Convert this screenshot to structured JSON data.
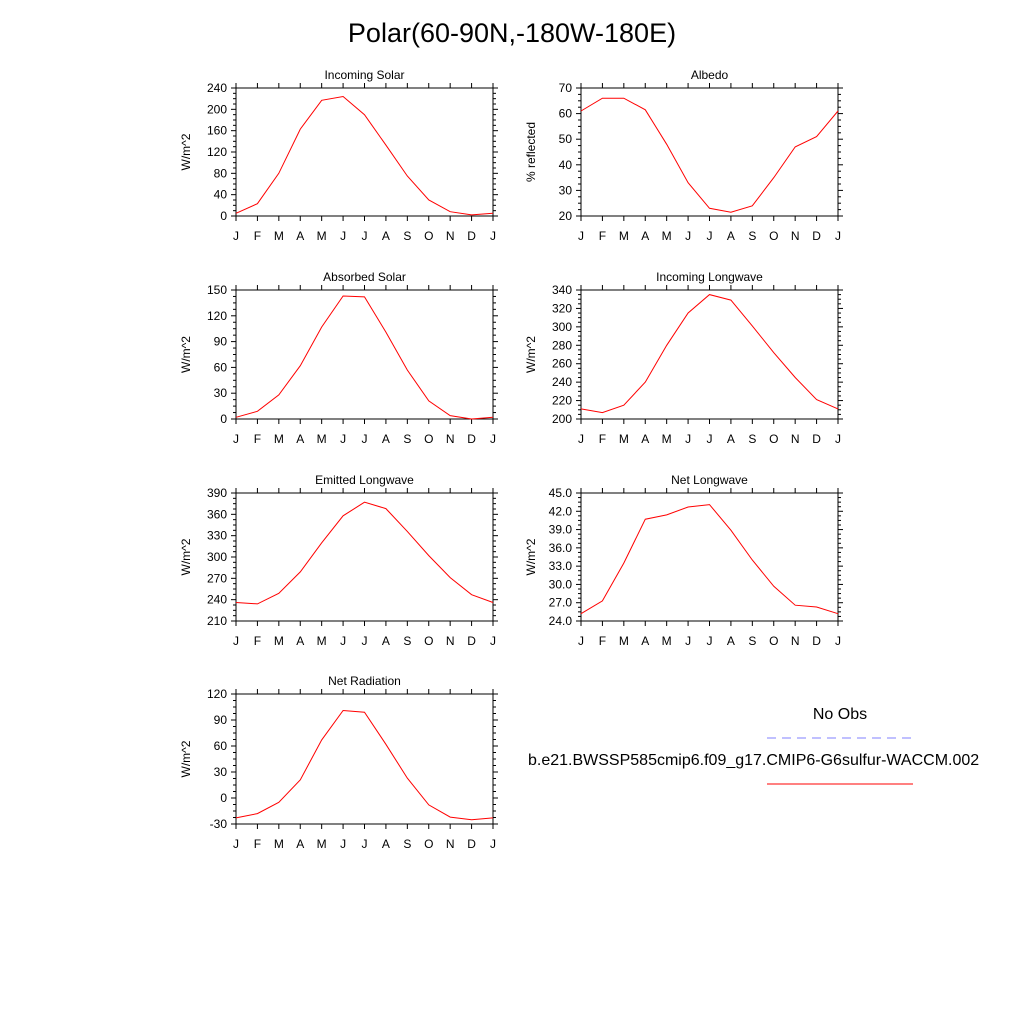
{
  "title": "Polar(60-90N,-180W-180E)",
  "legend": {
    "obs_label": "No Obs",
    "case_label": "b.e21.BWSSP585cmip6.f09_g17.CMIP6-G6sulfur-WACCM.002",
    "obs_color": "#8080ff",
    "case_color": "#ff0000"
  },
  "chart_data": [
    {
      "type": "line",
      "title": "Incoming Solar",
      "ylabel": "W/m^2",
      "x": [
        "J",
        "F",
        "M",
        "A",
        "M",
        "J",
        "J",
        "A",
        "S",
        "O",
        "N",
        "D",
        "J"
      ],
      "yticks": [
        "0",
        "40",
        "80",
        "120",
        "160",
        "200",
        "240"
      ],
      "ylim": [
        0,
        240
      ],
      "series": [
        {
          "values": [
            5,
            23,
            80,
            163,
            217,
            224,
            190,
            133,
            75,
            30,
            8,
            2,
            5
          ]
        }
      ]
    },
    {
      "type": "line",
      "title": "Albedo",
      "ylabel": "% reflected",
      "x": [
        "J",
        "F",
        "M",
        "A",
        "M",
        "J",
        "J",
        "A",
        "S",
        "O",
        "N",
        "D",
        "J"
      ],
      "yticks": [
        "20",
        "30",
        "40",
        "50",
        "60",
        "70"
      ],
      "ylim": [
        20,
        70
      ],
      "series": [
        {
          "values": [
            61,
            66,
            66,
            61.5,
            48,
            33,
            23,
            21.5,
            24,
            35,
            47,
            51,
            61
          ]
        }
      ]
    },
    {
      "type": "line",
      "title": "Absorbed Solar",
      "ylabel": "W/m^2",
      "x": [
        "J",
        "F",
        "M",
        "A",
        "M",
        "J",
        "J",
        "A",
        "S",
        "O",
        "N",
        "D",
        "J"
      ],
      "yticks": [
        "0",
        "30",
        "60",
        "90",
        "120",
        "150"
      ],
      "ylim": [
        0,
        150
      ],
      "series": [
        {
          "values": [
            2,
            9,
            28,
            62,
            107,
            143,
            142,
            101,
            57,
            21,
            4,
            0,
            2
          ]
        }
      ]
    },
    {
      "type": "line",
      "title": "Incoming Longwave",
      "ylabel": "W/m^2",
      "x": [
        "J",
        "F",
        "M",
        "A",
        "M",
        "J",
        "J",
        "A",
        "S",
        "O",
        "N",
        "D",
        "J"
      ],
      "yticks": [
        "200",
        "220",
        "240",
        "260",
        "280",
        "300",
        "320",
        "340"
      ],
      "ylim": [
        200,
        340
      ],
      "series": [
        {
          "values": [
            211,
            207,
            215,
            240,
            280,
            315,
            335,
            329,
            301,
            272,
            245,
            221,
            211
          ]
        }
      ]
    },
    {
      "type": "line",
      "title": "Emitted Longwave",
      "ylabel": "W/m^2",
      "x": [
        "J",
        "F",
        "M",
        "A",
        "M",
        "J",
        "J",
        "A",
        "S",
        "O",
        "N",
        "D",
        "J"
      ],
      "yticks": [
        "210",
        "240",
        "270",
        "300",
        "330",
        "360",
        "390"
      ],
      "ylim": [
        210,
        390
      ],
      "series": [
        {
          "values": [
            236,
            234,
            249,
            279,
            320,
            358,
            377,
            368,
            336,
            302,
            271,
            247,
            236
          ]
        }
      ]
    },
    {
      "type": "line",
      "title": "Net Longwave",
      "ylabel": "W/m^2",
      "x": [
        "J",
        "F",
        "M",
        "A",
        "M",
        "J",
        "J",
        "A",
        "S",
        "O",
        "N",
        "D",
        "J"
      ],
      "yticks": [
        "24.0",
        "27.0",
        "30.0",
        "33.0",
        "36.0",
        "39.0",
        "42.0",
        "45.0"
      ],
      "ylim": [
        24,
        45
      ],
      "series": [
        {
          "values": [
            25.2,
            27.3,
            33.5,
            40.7,
            41.4,
            42.7,
            43.1,
            38.9,
            34.0,
            29.7,
            26.6,
            26.3,
            25.2
          ]
        }
      ]
    },
    {
      "type": "line",
      "title": "Net Radiation",
      "ylabel": "W/m^2",
      "x": [
        "J",
        "F",
        "M",
        "A",
        "M",
        "J",
        "J",
        "A",
        "S",
        "O",
        "N",
        "D",
        "J"
      ],
      "yticks": [
        "-30",
        "0",
        "30",
        "60",
        "90",
        "120"
      ],
      "ylim": [
        -30,
        120
      ],
      "series": [
        {
          "values": [
            -23,
            -18,
            -5,
            21,
            67,
            101,
            99,
            62,
            23,
            -8,
            -22,
            -25,
            -23
          ]
        }
      ]
    }
  ]
}
